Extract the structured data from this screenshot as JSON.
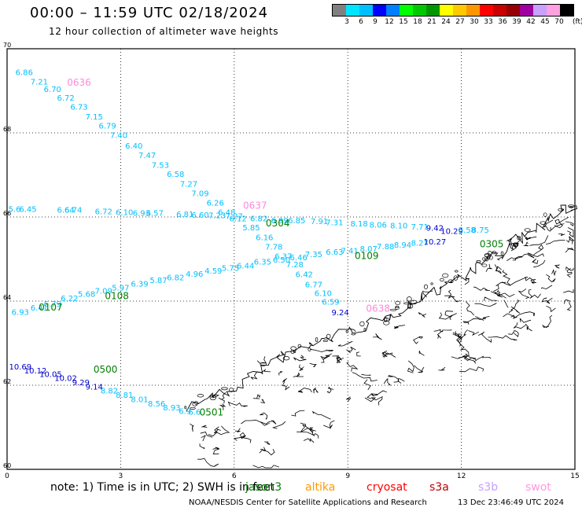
{
  "header": {
    "title": "00:00 – 11:59 UTC 02/18/2024",
    "subtitle": "12 hour collection of altimeter wave heights"
  },
  "legend": {
    "colors": [
      "#808080",
      "#00e5ff",
      "#00bfff",
      "#0000ff",
      "#0080ff",
      "#00ff00",
      "#00c800",
      "#009600",
      "#ffff00",
      "#ffc800",
      "#ff9600",
      "#ff0000",
      "#c80000",
      "#960000",
      "#a000a0",
      "#c8a0ff",
      "#ffa0e0",
      "#000000"
    ],
    "labels": [
      "3",
      "6",
      "9",
      "12",
      "15",
      "18",
      "21",
      "24",
      "27",
      "30",
      "33",
      "36",
      "39",
      "42",
      "45",
      "70"
    ],
    "unit": "(ft)"
  },
  "axes": {
    "x_ticks": [
      "0",
      "3",
      "6",
      "9",
      "12",
      "15"
    ],
    "y_ticks": [
      "70",
      "68",
      "66",
      "64",
      "62",
      "60"
    ],
    "xlim": [
      0,
      15
    ],
    "ylim": [
      60,
      70
    ]
  },
  "note": {
    "lead": "note:  1) Time is in UTC;  2) SWH is in feet",
    "satellites": [
      {
        "name": "jason3",
        "color": "#008000"
      },
      {
        "name": "altika",
        "color": "#ff9900"
      },
      {
        "name": "cryosat",
        "color": "#ff0000"
      },
      {
        "name": "s3a",
        "color": "#c00000"
      },
      {
        "name": "s3b",
        "color": "#c8a0ff"
      },
      {
        "name": "swot",
        "color": "#ff99dd"
      }
    ]
  },
  "credit": {
    "center": "NOAA/NESDIS Center for Satellite Applications and Research",
    "timestamp": "13 Dec 23:46:49 UTC 2024"
  },
  "time_labels": [
    {
      "text": "0636",
      "x": 1.9,
      "y": 69.12,
      "color": "#ff88dd"
    },
    {
      "text": "0637",
      "x": 6.55,
      "y": 66.2,
      "color": "#ff88dd"
    },
    {
      "text": "0304",
      "x": 7.15,
      "y": 65.78,
      "color": "#008000"
    },
    {
      "text": "0305",
      "x": 12.8,
      "y": 65.28,
      "color": "#008000"
    },
    {
      "text": "0109",
      "x": 9.5,
      "y": 65.0,
      "color": "#008000"
    },
    {
      "text": "0108",
      "x": 2.9,
      "y": 64.05,
      "color": "#008000"
    },
    {
      "text": "0107",
      "x": 1.15,
      "y": 63.78,
      "color": "#008000"
    },
    {
      "text": "0500",
      "x": 2.6,
      "y": 62.3,
      "color": "#008000"
    },
    {
      "text": "0501",
      "x": 5.4,
      "y": 61.28,
      "color": "#008000"
    },
    {
      "text": "0638",
      "x": 9.8,
      "y": 63.75,
      "color": "#ff88dd"
    }
  ],
  "tracks": [
    {
      "name": "track-0636",
      "points": [
        {
          "v": "6.86",
          "x": 0.45,
          "y": 69.37,
          "c": "#00bfff"
        },
        {
          "v": "7.21",
          "x": 0.85,
          "y": 69.15,
          "c": "#00bfff"
        },
        {
          "v": "6.70",
          "x": 1.2,
          "y": 68.97,
          "c": "#00bfff"
        },
        {
          "v": "6.72",
          "x": 1.55,
          "y": 68.77,
          "c": "#00bfff"
        },
        {
          "v": "6.73",
          "x": 1.9,
          "y": 68.55,
          "c": "#00bfff"
        },
        {
          "v": "7.15",
          "x": 2.3,
          "y": 68.32,
          "c": "#00bfff"
        },
        {
          "v": "6.79",
          "x": 2.65,
          "y": 68.1,
          "c": "#00bfff"
        },
        {
          "v": "7.40",
          "x": 2.95,
          "y": 67.88,
          "c": "#00bfff"
        },
        {
          "v": "6.40",
          "x": 3.35,
          "y": 67.63,
          "c": "#00bfff"
        },
        {
          "v": "7.47",
          "x": 3.7,
          "y": 67.4,
          "c": "#00bfff"
        },
        {
          "v": "7.53",
          "x": 4.05,
          "y": 67.17,
          "c": "#00bfff"
        },
        {
          "v": "6.58",
          "x": 4.45,
          "y": 66.95,
          "c": "#00bfff"
        },
        {
          "v": "7.27",
          "x": 4.8,
          "y": 66.72,
          "c": "#00bfff"
        },
        {
          "v": "7.09",
          "x": 5.1,
          "y": 66.5,
          "c": "#00bfff"
        },
        {
          "v": "6.26",
          "x": 5.5,
          "y": 66.27,
          "c": "#00bfff"
        },
        {
          "v": "6.48",
          "x": 5.8,
          "y": 66.05,
          "c": "#00bfff"
        },
        {
          "v": "6.12",
          "x": 6.1,
          "y": 65.9,
          "c": "#00bfff"
        },
        {
          "v": "5.85",
          "x": 6.45,
          "y": 65.68,
          "c": "#00bfff"
        },
        {
          "v": "6.16",
          "x": 6.8,
          "y": 65.45,
          "c": "#00bfff"
        },
        {
          "v": "7.78",
          "x": 7.05,
          "y": 65.22,
          "c": "#00bfff"
        },
        {
          "v": "6.37",
          "x": 7.3,
          "y": 65.0,
          "c": "#00bfff"
        },
        {
          "v": "7.28",
          "x": 7.6,
          "y": 64.8,
          "c": "#00bfff"
        },
        {
          "v": "6.42",
          "x": 7.85,
          "y": 64.57,
          "c": "#00bfff"
        },
        {
          "v": "6.77",
          "x": 8.1,
          "y": 64.33,
          "c": "#00bfff"
        },
        {
          "v": "6.10",
          "x": 8.35,
          "y": 64.12,
          "c": "#00bfff"
        },
        {
          "v": "6.59",
          "x": 8.55,
          "y": 63.92,
          "c": "#00bfff"
        },
        {
          "v": "9.24",
          "x": 8.8,
          "y": 63.66,
          "c": "#0000cc"
        }
      ]
    },
    {
      "name": "track-0304",
      "points": [
        {
          "v": "5.6",
          "x": 0.2,
          "y": 66.12,
          "c": "#00bfff"
        },
        {
          "v": "6.45",
          "x": 0.55,
          "y": 66.12,
          "c": "#00bfff"
        },
        {
          "v": "6.64",
          "x": 1.55,
          "y": 66.1,
          "c": "#00bfff"
        },
        {
          "v": "6.74",
          "x": 1.75,
          "y": 66.1,
          "c": "#00bfff"
        },
        {
          "v": "6.72",
          "x": 2.55,
          "y": 66.07,
          "c": "#00bfff"
        },
        {
          "v": "6.10",
          "x": 3.1,
          "y": 66.05,
          "c": "#00bfff"
        },
        {
          "v": "6.93",
          "x": 3.55,
          "y": 66.03,
          "c": "#00bfff"
        },
        {
          "v": "6.57",
          "x": 3.9,
          "y": 66.03,
          "c": "#00bfff"
        },
        {
          "v": "6.81",
          "x": 4.7,
          "y": 66.0,
          "c": "#00bfff"
        },
        {
          "v": "6.60",
          "x": 5.1,
          "y": 65.98,
          "c": "#00bfff"
        },
        {
          "v": "7.23",
          "x": 5.55,
          "y": 65.97,
          "c": "#00bfff"
        },
        {
          "v": "7.27",
          "x": 6.0,
          "y": 65.95,
          "c": "#00bfff"
        },
        {
          "v": "6.82",
          "x": 6.65,
          "y": 65.9,
          "c": "#00bfff"
        },
        {
          "v": "6.99",
          "x": 7.2,
          "y": 65.85,
          "c": "#00bfff"
        },
        {
          "v": "6.85",
          "x": 7.65,
          "y": 65.85,
          "c": "#00bfff"
        },
        {
          "v": "7.91",
          "x": 8.25,
          "y": 65.83,
          "c": "#00bfff"
        },
        {
          "v": "7.31",
          "x": 8.65,
          "y": 65.8,
          "c": "#00bfff"
        },
        {
          "v": "8.18",
          "x": 9.3,
          "y": 65.78,
          "c": "#00bfff"
        },
        {
          "v": "8.06",
          "x": 9.8,
          "y": 65.75,
          "c": "#00bfff"
        },
        {
          "v": "8.10",
          "x": 10.35,
          "y": 65.73,
          "c": "#00bfff"
        },
        {
          "v": "7.71",
          "x": 10.9,
          "y": 65.7,
          "c": "#00bfff"
        },
        {
          "v": "9.42",
          "x": 11.3,
          "y": 65.67,
          "c": "#0000cc"
        },
        {
          "v": "10.29",
          "x": 11.75,
          "y": 65.6,
          "c": "#0000cc"
        },
        {
          "v": "8.58",
          "x": 12.15,
          "y": 65.63,
          "c": "#00bfff"
        },
        {
          "v": "8.75",
          "x": 12.5,
          "y": 65.63,
          "c": "#00bfff"
        }
      ]
    },
    {
      "name": "track-0107",
      "points": [
        {
          "v": "6.93",
          "x": 0.35,
          "y": 63.67,
          "c": "#00bfff"
        },
        {
          "v": "6.41",
          "x": 0.85,
          "y": 63.78,
          "c": "#00bfff"
        },
        {
          "v": "6.79",
          "x": 1.2,
          "y": 63.87,
          "c": "#00bfff"
        },
        {
          "v": "6.22",
          "x": 1.65,
          "y": 64.0,
          "c": "#00bfff"
        },
        {
          "v": "5.68",
          "x": 2.1,
          "y": 64.1,
          "c": "#00bfff"
        },
        {
          "v": "7.09",
          "x": 2.55,
          "y": 64.18,
          "c": "#00bfff"
        },
        {
          "v": "5.97",
          "x": 3.0,
          "y": 64.25,
          "c": "#00bfff"
        },
        {
          "v": "6.39",
          "x": 3.5,
          "y": 64.35,
          "c": "#00bfff"
        },
        {
          "v": "5.87",
          "x": 4.0,
          "y": 64.43,
          "c": "#00bfff"
        },
        {
          "v": "6.82",
          "x": 4.45,
          "y": 64.5,
          "c": "#00bfff"
        },
        {
          "v": "4.96",
          "x": 4.95,
          "y": 64.58,
          "c": "#00bfff"
        },
        {
          "v": "4.59",
          "x": 5.45,
          "y": 64.65,
          "c": "#00bfff"
        },
        {
          "v": "5.75",
          "x": 5.9,
          "y": 64.72,
          "c": "#00bfff"
        },
        {
          "v": "6.44",
          "x": 6.3,
          "y": 64.78,
          "c": "#00bfff"
        },
        {
          "v": "6.35",
          "x": 6.75,
          "y": 64.87,
          "c": "#00bfff"
        },
        {
          "v": "6.50",
          "x": 7.25,
          "y": 64.92,
          "c": "#00bfff"
        },
        {
          "v": "6.46",
          "x": 7.7,
          "y": 64.97,
          "c": "#00bfff"
        },
        {
          "v": "7.35",
          "x": 8.1,
          "y": 65.05,
          "c": "#00bfff"
        },
        {
          "v": "6.63",
          "x": 8.65,
          "y": 65.1,
          "c": "#00bfff"
        },
        {
          "v": "7.41",
          "x": 9.05,
          "y": 65.13,
          "c": "#00bfff"
        },
        {
          "v": "8.07",
          "x": 9.55,
          "y": 65.18,
          "c": "#00bfff"
        },
        {
          "v": "7.88",
          "x": 10.0,
          "y": 65.23,
          "c": "#00bfff"
        },
        {
          "v": "8.94",
          "x": 10.45,
          "y": 65.27,
          "c": "#00bfff"
        },
        {
          "v": "8.27",
          "x": 10.9,
          "y": 65.32,
          "c": "#00bfff"
        },
        {
          "v": "10.27",
          "x": 11.3,
          "y": 65.35,
          "c": "#0000cc"
        }
      ]
    },
    {
      "name": "track-0500",
      "points": [
        {
          "v": "10.69",
          "x": 0.35,
          "y": 62.37,
          "c": "#0000cc"
        },
        {
          "v": "10.12",
          "x": 0.75,
          "y": 62.28,
          "c": "#0000cc"
        },
        {
          "v": "10.05",
          "x": 1.15,
          "y": 62.2,
          "c": "#0000cc"
        },
        {
          "v": "10.02",
          "x": 1.55,
          "y": 62.1,
          "c": "#0000cc"
        },
        {
          "v": "9.29",
          "x": 1.95,
          "y": 62.0,
          "c": "#0000cc"
        },
        {
          "v": "9.14",
          "x": 2.3,
          "y": 61.9,
          "c": "#0000cc"
        },
        {
          "v": "8.82",
          "x": 2.7,
          "y": 61.8,
          "c": "#00bfff"
        },
        {
          "v": "8.81",
          "x": 3.1,
          "y": 61.7,
          "c": "#00bfff"
        },
        {
          "v": "8.01",
          "x": 3.5,
          "y": 61.6,
          "c": "#00bfff"
        },
        {
          "v": "8.56",
          "x": 3.95,
          "y": 61.5,
          "c": "#00bfff"
        },
        {
          "v": "8.93",
          "x": 4.35,
          "y": 61.4,
          "c": "#00bfff"
        },
        {
          "v": "6.9",
          "x": 4.7,
          "y": 61.32,
          "c": "#00bfff"
        },
        {
          "v": "6.6",
          "x": 4.95,
          "y": 61.3,
          "c": "#00bfff"
        }
      ]
    }
  ]
}
